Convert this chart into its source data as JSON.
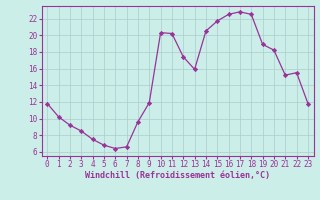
{
  "x": [
    0,
    1,
    2,
    3,
    4,
    5,
    6,
    7,
    8,
    9,
    10,
    11,
    12,
    13,
    14,
    15,
    16,
    17,
    18,
    19,
    20,
    21,
    22,
    23
  ],
  "y": [
    11.8,
    10.2,
    9.2,
    8.5,
    7.5,
    6.8,
    6.4,
    6.6,
    9.6,
    11.9,
    20.3,
    20.2,
    17.4,
    15.9,
    20.5,
    21.7,
    22.5,
    22.8,
    22.5,
    18.9,
    18.2,
    15.2,
    15.5,
    11.8
  ],
  "line_color": "#993399",
  "marker": "D",
  "markersize": 2.2,
  "linewidth": 0.9,
  "bg_color": "#cceee8",
  "grid_color": "#aacccc",
  "xlabel": "Windchill (Refroidissement éolien,°C)",
  "xlabel_color": "#993399",
  "tick_color": "#993399",
  "axis_color": "#993399",
  "xlim": [
    -0.5,
    23.5
  ],
  "ylim": [
    5.5,
    23.5
  ],
  "yticks": [
    6,
    8,
    10,
    12,
    14,
    16,
    18,
    20,
    22
  ],
  "xticks": [
    0,
    1,
    2,
    3,
    4,
    5,
    6,
    7,
    8,
    9,
    10,
    11,
    12,
    13,
    14,
    15,
    16,
    17,
    18,
    19,
    20,
    21,
    22,
    23
  ],
  "xtick_labels": [
    "0",
    "1",
    "2",
    "3",
    "4",
    "5",
    "6",
    "7",
    "8",
    "9",
    "10",
    "11",
    "12",
    "13",
    "14",
    "15",
    "16",
    "17",
    "18",
    "19",
    "20",
    "21",
    "22",
    "23"
  ],
  "ytick_labels": [
    "6",
    "8",
    "10",
    "12",
    "14",
    "16",
    "18",
    "20",
    "22"
  ],
  "tick_fontsize": 5.5,
  "xlabel_fontsize": 6.0
}
